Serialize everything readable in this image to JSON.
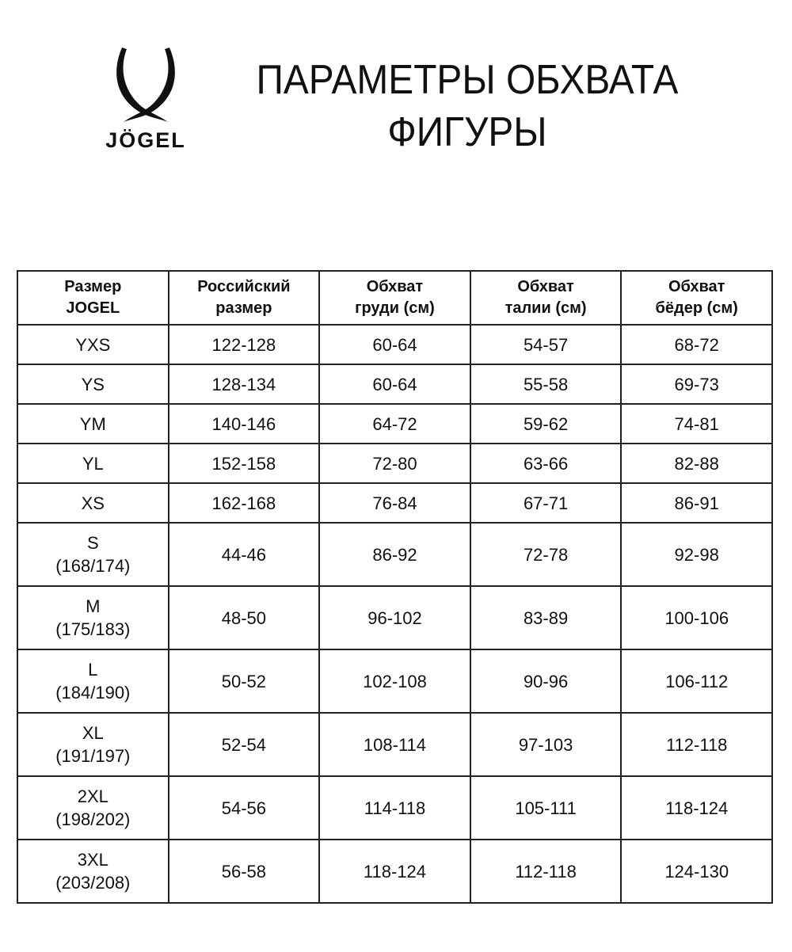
{
  "logo": {
    "brand": "JÖGEL"
  },
  "title": {
    "line1": "ПАРАМЕТРЫ ОБХВАТА",
    "line2": "ФИГУРЫ"
  },
  "table": {
    "headers": [
      [
        "Размер",
        "JOGEL"
      ],
      [
        "Российский",
        "размер"
      ],
      [
        "Обхват",
        "груди (см)"
      ],
      [
        "Обхват",
        "талии (см)"
      ],
      [
        "Обхват",
        "бёдер (см)"
      ]
    ],
    "rows": [
      {
        "size": [
          "YXS"
        ],
        "ru": "122-128",
        "chest": "60-64",
        "waist": "54-57",
        "hips": "68-72"
      },
      {
        "size": [
          "YS"
        ],
        "ru": "128-134",
        "chest": "60-64",
        "waist": "55-58",
        "hips": "69-73"
      },
      {
        "size": [
          "YM"
        ],
        "ru": "140-146",
        "chest": "64-72",
        "waist": "59-62",
        "hips": "74-81"
      },
      {
        "size": [
          "YL"
        ],
        "ru": "152-158",
        "chest": "72-80",
        "waist": "63-66",
        "hips": "82-88"
      },
      {
        "size": [
          "XS"
        ],
        "ru": "162-168",
        "chest": "76-84",
        "waist": "67-71",
        "hips": "86-91"
      },
      {
        "size": [
          "S",
          "(168/174)"
        ],
        "ru": "44-46",
        "chest": "86-92",
        "waist": "72-78",
        "hips": "92-98"
      },
      {
        "size": [
          "M",
          "(175/183)"
        ],
        "ru": "48-50",
        "chest": "96-102",
        "waist": "83-89",
        "hips": "100-106"
      },
      {
        "size": [
          "L",
          "(184/190)"
        ],
        "ru": "50-52",
        "chest": "102-108",
        "waist": "90-96",
        "hips": "106-112"
      },
      {
        "size": [
          "XL",
          "(191/197)"
        ],
        "ru": "52-54",
        "chest": "108-114",
        "waist": "97-103",
        "hips": "112-118"
      },
      {
        "size": [
          "2XL",
          "(198/202)"
        ],
        "ru": "54-56",
        "chest": "114-118",
        "waist": "105-111",
        "hips": "118-124"
      },
      {
        "size": [
          "3XL",
          "(203/208)"
        ],
        "ru": "56-58",
        "chest": "118-124",
        "waist": "112-118",
        "hips": "124-130"
      }
    ]
  }
}
